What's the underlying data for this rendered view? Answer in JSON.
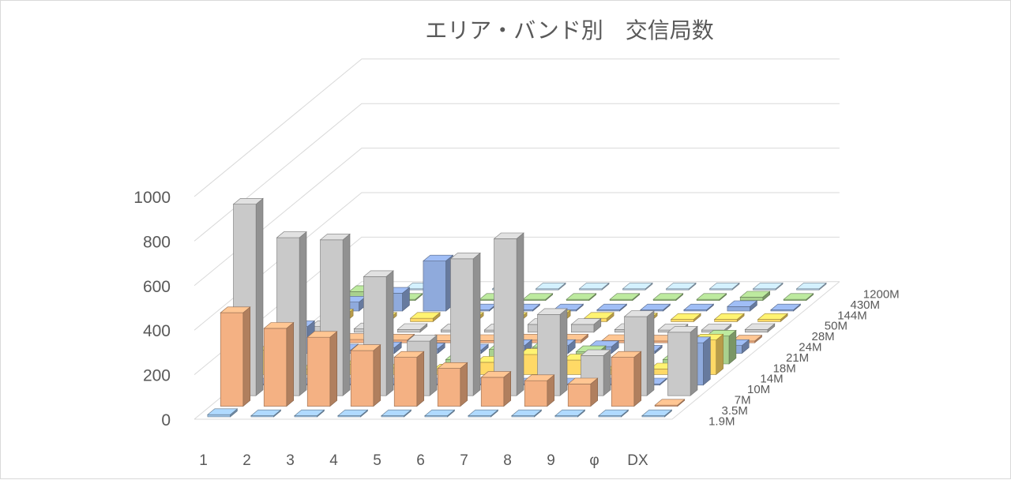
{
  "chart_data": {
    "type": "bar3d",
    "title": "エリア・バンド別　交信局数",
    "areas": [
      "1",
      "2",
      "3",
      "4",
      "5",
      "6",
      "7",
      "8",
      "9",
      "φ",
      "DX"
    ],
    "y_ticks": [
      "0",
      "200",
      "400",
      "600",
      "800",
      "1000"
    ],
    "ylim": [
      0,
      1000
    ],
    "legend": "none",
    "grid": true,
    "series": [
      {
        "name": "1.9M",
        "color": "#9dc3e6",
        "values": [
          10,
          5,
          5,
          5,
          5,
          5,
          5,
          5,
          5,
          5,
          5
        ]
      },
      {
        "name": "3.5M",
        "color": "#f4b183",
        "values": [
          420,
          350,
          310,
          250,
          220,
          170,
          130,
          115,
          100,
          220,
          5
        ]
      },
      {
        "name": "7M",
        "color": "#c9c9c9",
        "values": [
          860,
          710,
          700,
          535,
          245,
          615,
          705,
          365,
          180,
          355,
          285
        ]
      },
      {
        "name": "10M",
        "color": "#8faadc",
        "values": [
          5,
          5,
          5,
          5,
          5,
          5,
          5,
          5,
          5,
          5,
          190
        ]
      },
      {
        "name": "14M",
        "color": "#ffd966",
        "values": [
          110,
          25,
          45,
          30,
          20,
          55,
          90,
          65,
          20,
          25,
          155
        ]
      },
      {
        "name": "18M",
        "color": "#a9d18e",
        "values": [
          110,
          25,
          55,
          25,
          20,
          65,
          75,
          55,
          15,
          20,
          125
        ]
      },
      {
        "name": "21M",
        "color": "#8faadc",
        "values": [
          120,
          15,
          25,
          20,
          15,
          35,
          35,
          30,
          10,
          15,
          35
        ]
      },
      {
        "name": "24M",
        "color": "#f4b183",
        "values": [
          10,
          15,
          12,
          10,
          10,
          12,
          12,
          10,
          8,
          8,
          8
        ]
      },
      {
        "name": "28M",
        "color": "#c9c9c9",
        "values": [
          25,
          15,
          12,
          10,
          10,
          35,
          35,
          12,
          10,
          10,
          12
        ]
      },
      {
        "name": "50M",
        "color": "#ffd966",
        "values": [
          30,
          15,
          15,
          15,
          15,
          25,
          15,
          12,
          10,
          10,
          10
        ]
      },
      {
        "name": "144M",
        "color": "#8faadc",
        "values": [
          40,
          80,
          225,
          5,
          5,
          5,
          5,
          5,
          5,
          20,
          5
        ]
      },
      {
        "name": "430M",
        "color": "#a9d18e",
        "values": [
          40,
          5,
          160,
          5,
          5,
          5,
          5,
          5,
          5,
          15,
          5
        ]
      },
      {
        "name": "1200M",
        "color": "#bdd7ee",
        "values": [
          5,
          5,
          40,
          5,
          5,
          5,
          5,
          5,
          5,
          5,
          5
        ]
      }
    ]
  }
}
